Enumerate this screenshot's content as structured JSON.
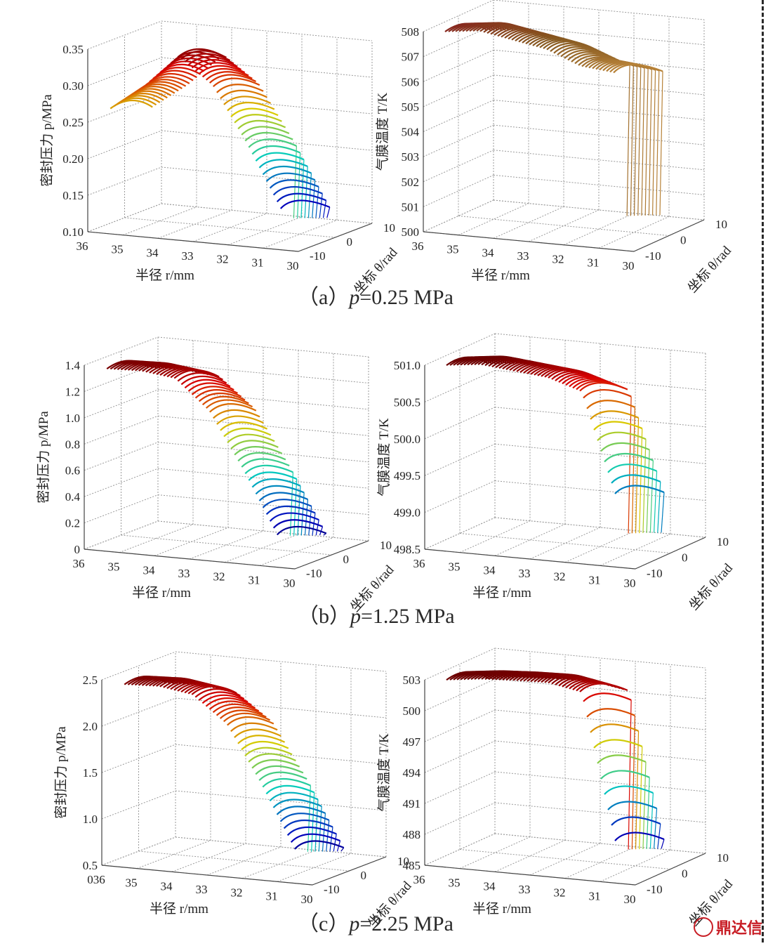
{
  "captions": [
    {
      "prefix": "（a）",
      "var": "p",
      "rest": "=0.25 MPa"
    },
    {
      "prefix": "（b）",
      "var": "p",
      "rest": "=1.25 MPa"
    },
    {
      "prefix": "（c）",
      "var": "p",
      "rest": "=2.25 MPa"
    }
  ],
  "watermark": {
    "logo": "鼎",
    "text": "鼎达信"
  },
  "chart_data": [
    {
      "type": "surface",
      "panel": "a-left",
      "zlabel": "密封压力 p/MPa",
      "xlabel": "半径 r/mm",
      "ylabel": "坐标 θ/rad",
      "x_ticks": [
        "36",
        "35",
        "34",
        "33",
        "32",
        "31",
        "30"
      ],
      "y_ticks": [
        "-10",
        "0",
        "10"
      ],
      "z_ticks": [
        "0.10",
        "0.15",
        "0.20",
        "0.25",
        "0.30",
        "0.35"
      ],
      "zlim": [
        0.1,
        0.35
      ],
      "surface_profile": [
        0.27,
        0.3,
        0.34,
        0.3,
        0.22,
        0.13
      ],
      "colormap": "jet"
    },
    {
      "type": "surface",
      "panel": "a-right",
      "zlabel": "气膜温度 T/K",
      "xlabel": "半径 r/mm",
      "ylabel": "坐标 θ/rad",
      "x_ticks": [
        "36",
        "35",
        "34",
        "33",
        "32",
        "31",
        "30"
      ],
      "y_ticks": [
        "-10",
        "0",
        "10"
      ],
      "z_ticks": [
        "500",
        "501",
        "502",
        "503",
        "504",
        "505",
        "506",
        "507",
        "508"
      ],
      "zlim": [
        500,
        508
      ],
      "surface_profile": [
        508,
        508,
        507.6,
        507.2,
        506.5,
        506.2
      ],
      "colormap": "hot"
    },
    {
      "type": "surface",
      "panel": "b-left",
      "zlabel": "密封压力 p/MPa",
      "xlabel": "半径 r/mm",
      "ylabel": "坐标 θ/rad",
      "x_ticks": [
        "36",
        "35",
        "34",
        "33",
        "32",
        "31",
        "30"
      ],
      "y_ticks": [
        "-10",
        "0",
        "10"
      ],
      "z_ticks": [
        "0",
        "0.2",
        "0.4",
        "0.6",
        "0.8",
        "1.0",
        "1.2",
        "1.4"
      ],
      "zlim": [
        0,
        1.4
      ],
      "surface_profile": [
        1.38,
        1.36,
        1.3,
        1.05,
        0.6,
        0.1
      ],
      "colormap": "jet"
    },
    {
      "type": "surface",
      "panel": "b-right",
      "zlabel": "气膜温度 T/K",
      "xlabel": "半径 r/mm",
      "ylabel": "坐标 θ/rad",
      "x_ticks": [
        "36",
        "35",
        "34",
        "33",
        "32",
        "31",
        "30"
      ],
      "y_ticks": [
        "-10",
        "0",
        "10"
      ],
      "z_ticks": [
        "498.5",
        "499.0",
        "499.5",
        "500.0",
        "500.5",
        "501.0"
      ],
      "zlim": [
        498.5,
        501.0
      ],
      "surface_profile": [
        501.0,
        501.0,
        500.9,
        500.8,
        500.6,
        499.2
      ],
      "colormap": "jet"
    },
    {
      "type": "surface",
      "panel": "c-left",
      "zlabel": "密封压力 p/MPa",
      "xlabel": "半径 r/mm",
      "ylabel": "坐标 θ/rad",
      "x_ticks": [
        "036",
        "35",
        "34",
        "33",
        "32",
        "31",
        "30"
      ],
      "y_ticks": [
        "-10",
        "0",
        "10"
      ],
      "z_ticks": [
        "0.5",
        "1.0",
        "1.5",
        "2.0",
        "2.5"
      ],
      "zlim": [
        0,
        2.5
      ],
      "surface_profile": [
        2.45,
        2.42,
        2.3,
        1.9,
        1.1,
        0.2
      ],
      "colormap": "jet"
    },
    {
      "type": "surface",
      "panel": "c-right",
      "zlabel": "气膜温度 T/K",
      "xlabel": "半径 r/mm",
      "ylabel": "坐标 θ/rad",
      "x_ticks": [
        "36",
        "35",
        "34",
        "33",
        "32",
        "31",
        "30"
      ],
      "y_ticks": [
        "-10",
        "0",
        "10"
      ],
      "z_ticks": [
        "485",
        "488",
        "491",
        "494",
        "497",
        "500",
        "503"
      ],
      "zlim": [
        485,
        503
      ],
      "surface_profile": [
        503,
        503,
        502.8,
        502.5,
        501.5,
        487
      ],
      "colormap": "jet"
    }
  ]
}
